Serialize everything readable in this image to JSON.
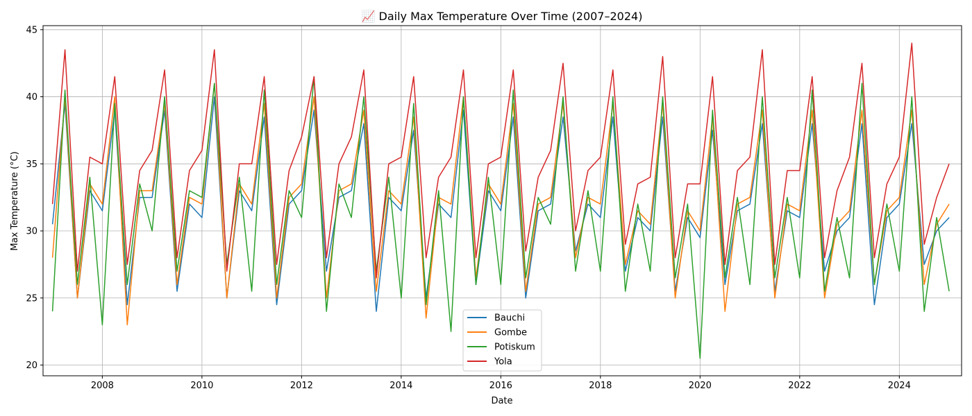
{
  "chart_data": {
    "type": "line",
    "title": "📈 Daily Max Temperature Over Time (2007–2024)",
    "xlabel": "Date",
    "ylabel": "Max Temperature (°C)",
    "xlim": [
      2006.81,
      2025.25
    ],
    "ylim": [
      19.2,
      45.3
    ],
    "x_ticks": [
      2008,
      2010,
      2012,
      2014,
      2016,
      2018,
      2020,
      2022,
      2024
    ],
    "x_tick_labels": [
      "2008",
      "2010",
      "2012",
      "2014",
      "2016",
      "2018",
      "2020",
      "2022",
      "2024"
    ],
    "y_ticks": [
      20,
      25,
      30,
      35,
      40,
      45
    ],
    "y_tick_labels": [
      "20",
      "25",
      "30",
      "35",
      "40",
      "45"
    ],
    "grid": true,
    "legend_position": "bottom-center",
    "series": [
      {
        "name": "Bauchi",
        "color": "#1f77b4",
        "x": [
          2007.0,
          2007.25,
          2007.5,
          2007.75,
          2008.0,
          2008.25,
          2008.5,
          2008.75,
          2009.0,
          2009.25,
          2009.5,
          2009.75,
          2010.0,
          2010.25,
          2010.5,
          2010.75,
          2011.0,
          2011.25,
          2011.5,
          2011.75,
          2012.0,
          2012.25,
          2012.5,
          2012.75,
          2013.0,
          2013.25,
          2013.5,
          2013.75,
          2014.0,
          2014.25,
          2014.5,
          2014.75,
          2015.0,
          2015.25,
          2015.5,
          2015.75,
          2016.0,
          2016.25,
          2016.5,
          2016.75,
          2017.0,
          2017.25,
          2017.5,
          2017.75,
          2018.0,
          2018.25,
          2018.5,
          2018.75,
          2019.0,
          2019.25,
          2019.5,
          2019.75,
          2020.0,
          2020.25,
          2020.5,
          2020.75,
          2021.0,
          2021.25,
          2021.5,
          2021.75,
          2022.0,
          2022.25,
          2022.5,
          2022.75,
          2023.0,
          2023.25,
          2023.5,
          2023.75,
          2024.0,
          2024.25,
          2024.5,
          2024.75,
          2025.0
        ],
        "y": [
          30.5,
          39.5,
          25.0,
          33.0,
          31.5,
          39.0,
          24.5,
          32.5,
          32.5,
          39.0,
          25.5,
          32.0,
          31.0,
          40.0,
          25.0,
          33.0,
          31.5,
          38.5,
          24.5,
          32.0,
          33.0,
          39.0,
          27.0,
          32.5,
          33.0,
          38.0,
          24.0,
          32.5,
          31.5,
          37.5,
          25.0,
          32.0,
          31.0,
          39.0,
          26.0,
          33.0,
          31.5,
          38.5,
          25.0,
          31.5,
          32.0,
          38.5,
          28.5,
          32.0,
          31.0,
          38.5,
          27.0,
          31.0,
          30.0,
          38.5,
          25.5,
          31.0,
          29.5,
          37.5,
          26.0,
          31.5,
          32.0,
          38.0,
          25.5,
          31.5,
          31.0,
          38.0,
          27.0,
          30.0,
          31.0,
          38.0,
          24.5,
          31.0,
          32.0,
          38.0,
          27.5,
          30.0,
          31.0
        ]
      },
      {
        "name": "Gombe",
        "color": "#ff7f0e",
        "x": [
          2007.0,
          2007.25,
          2007.5,
          2007.75,
          2008.0,
          2008.25,
          2008.5,
          2008.75,
          2009.0,
          2009.25,
          2009.5,
          2009.75,
          2010.0,
          2010.25,
          2010.5,
          2010.75,
          2011.0,
          2011.25,
          2011.5,
          2011.75,
          2012.0,
          2012.25,
          2012.5,
          2012.75,
          2013.0,
          2013.25,
          2013.5,
          2013.75,
          2014.0,
          2014.25,
          2014.5,
          2014.75,
          2015.0,
          2015.25,
          2015.5,
          2015.75,
          2016.0,
          2016.25,
          2016.5,
          2016.75,
          2017.0,
          2017.25,
          2017.5,
          2017.75,
          2018.0,
          2018.25,
          2018.5,
          2018.75,
          2019.0,
          2019.25,
          2019.5,
          2019.75,
          2020.0,
          2020.25,
          2020.5,
          2020.75,
          2021.0,
          2021.25,
          2021.5,
          2021.75,
          2022.0,
          2022.25,
          2022.5,
          2022.75,
          2023.0,
          2023.25,
          2023.5,
          2023.75,
          2024.0,
          2024.25,
          2024.5,
          2024.75,
          2025.0
        ],
        "y": [
          28.0,
          40.0,
          25.0,
          33.5,
          32.0,
          40.0,
          23.0,
          33.0,
          33.0,
          39.5,
          26.0,
          32.5,
          32.0,
          41.0,
          25.0,
          33.5,
          32.0,
          39.5,
          25.0,
          32.5,
          33.5,
          40.0,
          25.0,
          33.0,
          33.5,
          39.0,
          25.5,
          33.0,
          32.0,
          38.5,
          23.5,
          32.5,
          32.0,
          40.0,
          26.5,
          33.5,
          32.0,
          39.5,
          25.5,
          32.0,
          32.5,
          39.5,
          28.0,
          32.5,
          32.0,
          39.5,
          27.5,
          31.5,
          30.5,
          39.5,
          25.0,
          31.5,
          30.0,
          38.5,
          24.0,
          32.0,
          32.5,
          39.0,
          25.0,
          32.0,
          31.5,
          39.0,
          25.0,
          30.5,
          31.5,
          39.0,
          26.0,
          31.5,
          32.5,
          39.0,
          26.0,
          30.5,
          32.0
        ]
      },
      {
        "name": "Potiskum",
        "color": "#2ca02c",
        "x": [
          2007.0,
          2007.25,
          2007.5,
          2007.75,
          2008.0,
          2008.25,
          2008.5,
          2008.75,
          2009.0,
          2009.25,
          2009.5,
          2009.75,
          2010.0,
          2010.25,
          2010.5,
          2010.75,
          2011.0,
          2011.25,
          2011.5,
          2011.75,
          2012.0,
          2012.25,
          2012.5,
          2012.75,
          2013.0,
          2013.25,
          2013.5,
          2013.75,
          2014.0,
          2014.25,
          2014.5,
          2014.75,
          2015.0,
          2015.25,
          2015.5,
          2015.75,
          2016.0,
          2016.25,
          2016.5,
          2016.75,
          2017.0,
          2017.25,
          2017.5,
          2017.75,
          2018.0,
          2018.25,
          2018.5,
          2018.75,
          2019.0,
          2019.25,
          2019.5,
          2019.75,
          2020.0,
          2020.25,
          2020.5,
          2020.75,
          2021.0,
          2021.25,
          2021.5,
          2021.75,
          2022.0,
          2022.25,
          2022.5,
          2022.75,
          2023.0,
          2023.25,
          2023.5,
          2023.75,
          2024.0,
          2024.25,
          2024.5,
          2024.75,
          2025.0
        ],
        "y": [
          24.0,
          40.5,
          26.0,
          34.0,
          23.0,
          39.5,
          26.0,
          33.5,
          30.0,
          40.0,
          27.0,
          33.0,
          32.5,
          41.0,
          27.5,
          34.0,
          25.5,
          40.5,
          26.0,
          33.0,
          31.0,
          41.5,
          24.0,
          33.5,
          31.0,
          40.0,
          27.0,
          34.0,
          25.0,
          39.5,
          24.5,
          33.0,
          22.5,
          40.0,
          26.0,
          34.0,
          26.0,
          40.5,
          26.5,
          32.5,
          30.5,
          40.0,
          27.0,
          33.0,
          27.0,
          40.0,
          25.5,
          32.0,
          27.0,
          40.0,
          26.5,
          32.0,
          20.5,
          39.0,
          26.5,
          32.5,
          26.0,
          40.0,
          26.5,
          32.5,
          26.5,
          40.5,
          25.5,
          31.0,
          26.5,
          41.0,
          26.0,
          32.0,
          27.0,
          40.0,
          24.0,
          31.0,
          25.5
        ]
      },
      {
        "name": "Yola",
        "color": "#d62728",
        "x": [
          2007.0,
          2007.25,
          2007.5,
          2007.75,
          2008.0,
          2008.25,
          2008.5,
          2008.75,
          2009.0,
          2009.25,
          2009.5,
          2009.75,
          2010.0,
          2010.25,
          2010.5,
          2010.75,
          2011.0,
          2011.25,
          2011.5,
          2011.75,
          2012.0,
          2012.25,
          2012.5,
          2012.75,
          2013.0,
          2013.25,
          2013.5,
          2013.75,
          2014.0,
          2014.25,
          2014.5,
          2014.75,
          2015.0,
          2015.25,
          2015.5,
          2015.75,
          2016.0,
          2016.25,
          2016.5,
          2016.75,
          2017.0,
          2017.25,
          2017.5,
          2017.75,
          2018.0,
          2018.25,
          2018.5,
          2018.75,
          2019.0,
          2019.25,
          2019.5,
          2019.75,
          2020.0,
          2020.25,
          2020.5,
          2020.75,
          2021.0,
          2021.25,
          2021.5,
          2021.75,
          2022.0,
          2022.25,
          2022.5,
          2022.75,
          2023.0,
          2023.25,
          2023.5,
          2023.75,
          2024.0,
          2024.25,
          2024.5,
          2024.75,
          2025.0
        ],
        "y": [
          32.0,
          43.5,
          27.0,
          35.5,
          35.0,
          41.5,
          27.5,
          34.5,
          36.0,
          42.0,
          28.0,
          34.5,
          36.0,
          43.5,
          27.0,
          35.0,
          35.0,
          41.5,
          27.5,
          34.5,
          37.0,
          41.5,
          28.0,
          35.0,
          37.0,
          42.0,
          26.5,
          35.0,
          35.5,
          41.5,
          28.0,
          34.0,
          35.5,
          42.0,
          28.0,
          35.0,
          35.5,
          42.0,
          28.5,
          34.0,
          36.0,
          42.5,
          30.0,
          34.5,
          35.5,
          42.0,
          29.0,
          33.5,
          34.0,
          43.0,
          28.0,
          33.5,
          33.5,
          41.5,
          27.5,
          34.5,
          35.5,
          43.5,
          27.5,
          34.5,
          34.5,
          41.5,
          28.0,
          33.0,
          35.5,
          42.5,
          28.0,
          33.5,
          35.5,
          44.0,
          29.0,
          32.5,
          35.0
        ]
      }
    ]
  }
}
